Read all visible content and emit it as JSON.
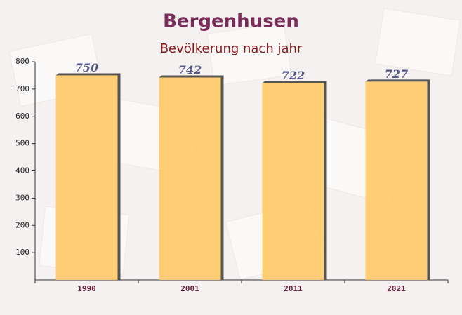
{
  "chart_data": {
    "type": "bar",
    "title": "Bergenhusen",
    "subtitle": "Bevölkerung nach jahr",
    "categories": [
      "1990",
      "2001",
      "2011",
      "2021"
    ],
    "values": [
      750,
      742,
      722,
      727
    ],
    "color": "#ffc966",
    "ylim": [
      0,
      800
    ],
    "yticks": [
      100,
      200,
      300,
      400,
      500,
      600,
      700,
      800
    ],
    "grid": false
  }
}
